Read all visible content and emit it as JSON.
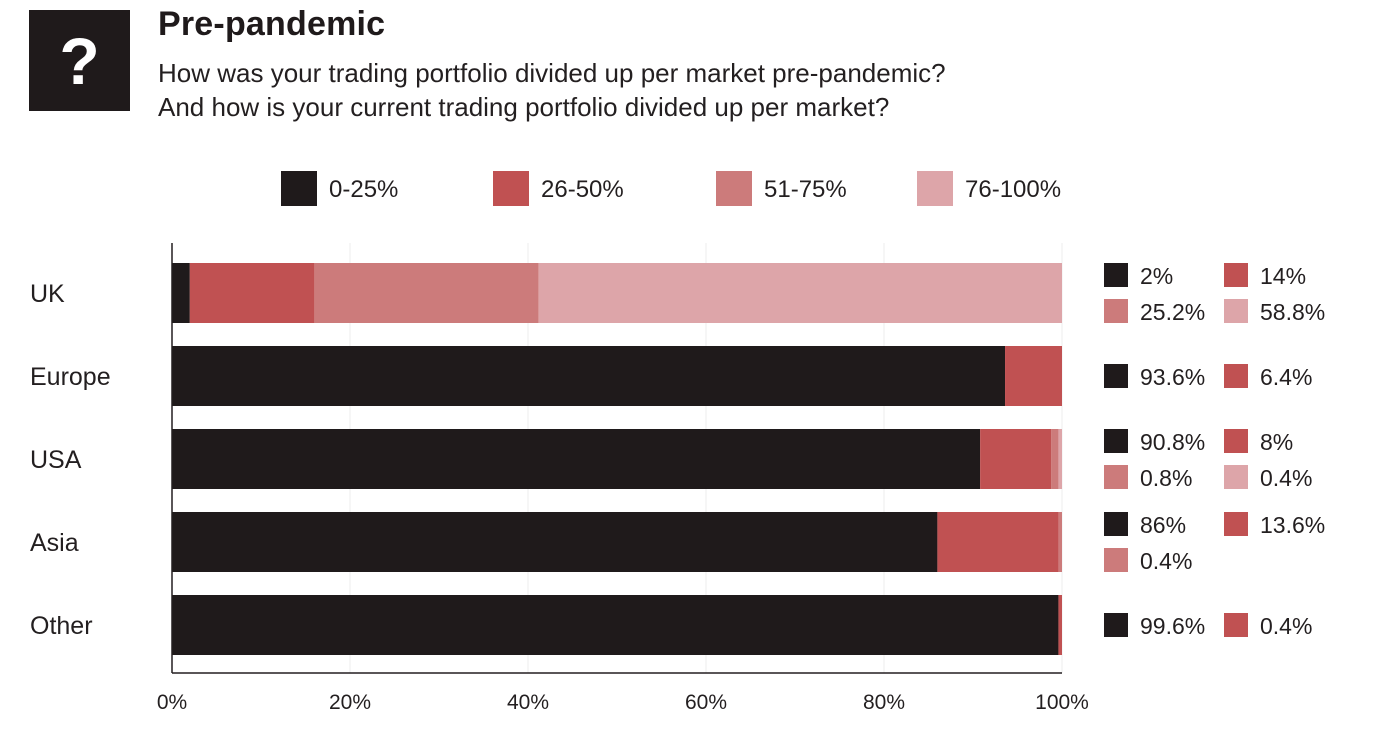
{
  "header": {
    "icon_glyph": "?",
    "icon_name": "question-mark-icon",
    "title": "Pre-pandemic",
    "subtitle_line1": "How was your trading portfolio divided up per market pre-pandemic?",
    "subtitle_line2": "And how is your current trading portfolio divided up per market?"
  },
  "chart_data": {
    "type": "bar",
    "orientation": "horizontal",
    "stacked": true,
    "categories": [
      "UK",
      "Europe",
      "USA",
      "Asia",
      "Other"
    ],
    "series": [
      {
        "name": "0-25%",
        "color": "#1f1a1b",
        "values": [
          2,
          93.6,
          90.8,
          86,
          99.6
        ]
      },
      {
        "name": "26-50%",
        "color": "#c05152",
        "values": [
          14,
          6.4,
          8,
          13.6,
          0.4
        ]
      },
      {
        "name": "51-75%",
        "color": "#cc7b7b",
        "values": [
          25.2,
          0,
          0.8,
          0.4,
          0
        ]
      },
      {
        "name": "76-100%",
        "color": "#dda5a9",
        "values": [
          58.8,
          0,
          0.4,
          0,
          0
        ]
      }
    ],
    "value_labels": [
      [
        "2%",
        "14%",
        "25.2%",
        "58.8%"
      ],
      [
        "93.6%",
        "6.4%"
      ],
      [
        "90.8%",
        "8%",
        "0.8%",
        "0.4%"
      ],
      [
        "86%",
        "13.6%",
        "0.4%"
      ],
      [
        "99.6%",
        "0.4%"
      ]
    ],
    "value_label_series": [
      [
        0,
        1,
        2,
        3
      ],
      [
        0,
        1
      ],
      [
        0,
        1,
        2,
        3
      ],
      [
        0,
        1,
        2
      ],
      [
        0,
        1
      ]
    ],
    "xlim": [
      0,
      100
    ],
    "x_ticks": [
      "0%",
      "20%",
      "40%",
      "60%",
      "80%",
      "100%"
    ],
    "grid": true,
    "legend_position": "top"
  }
}
